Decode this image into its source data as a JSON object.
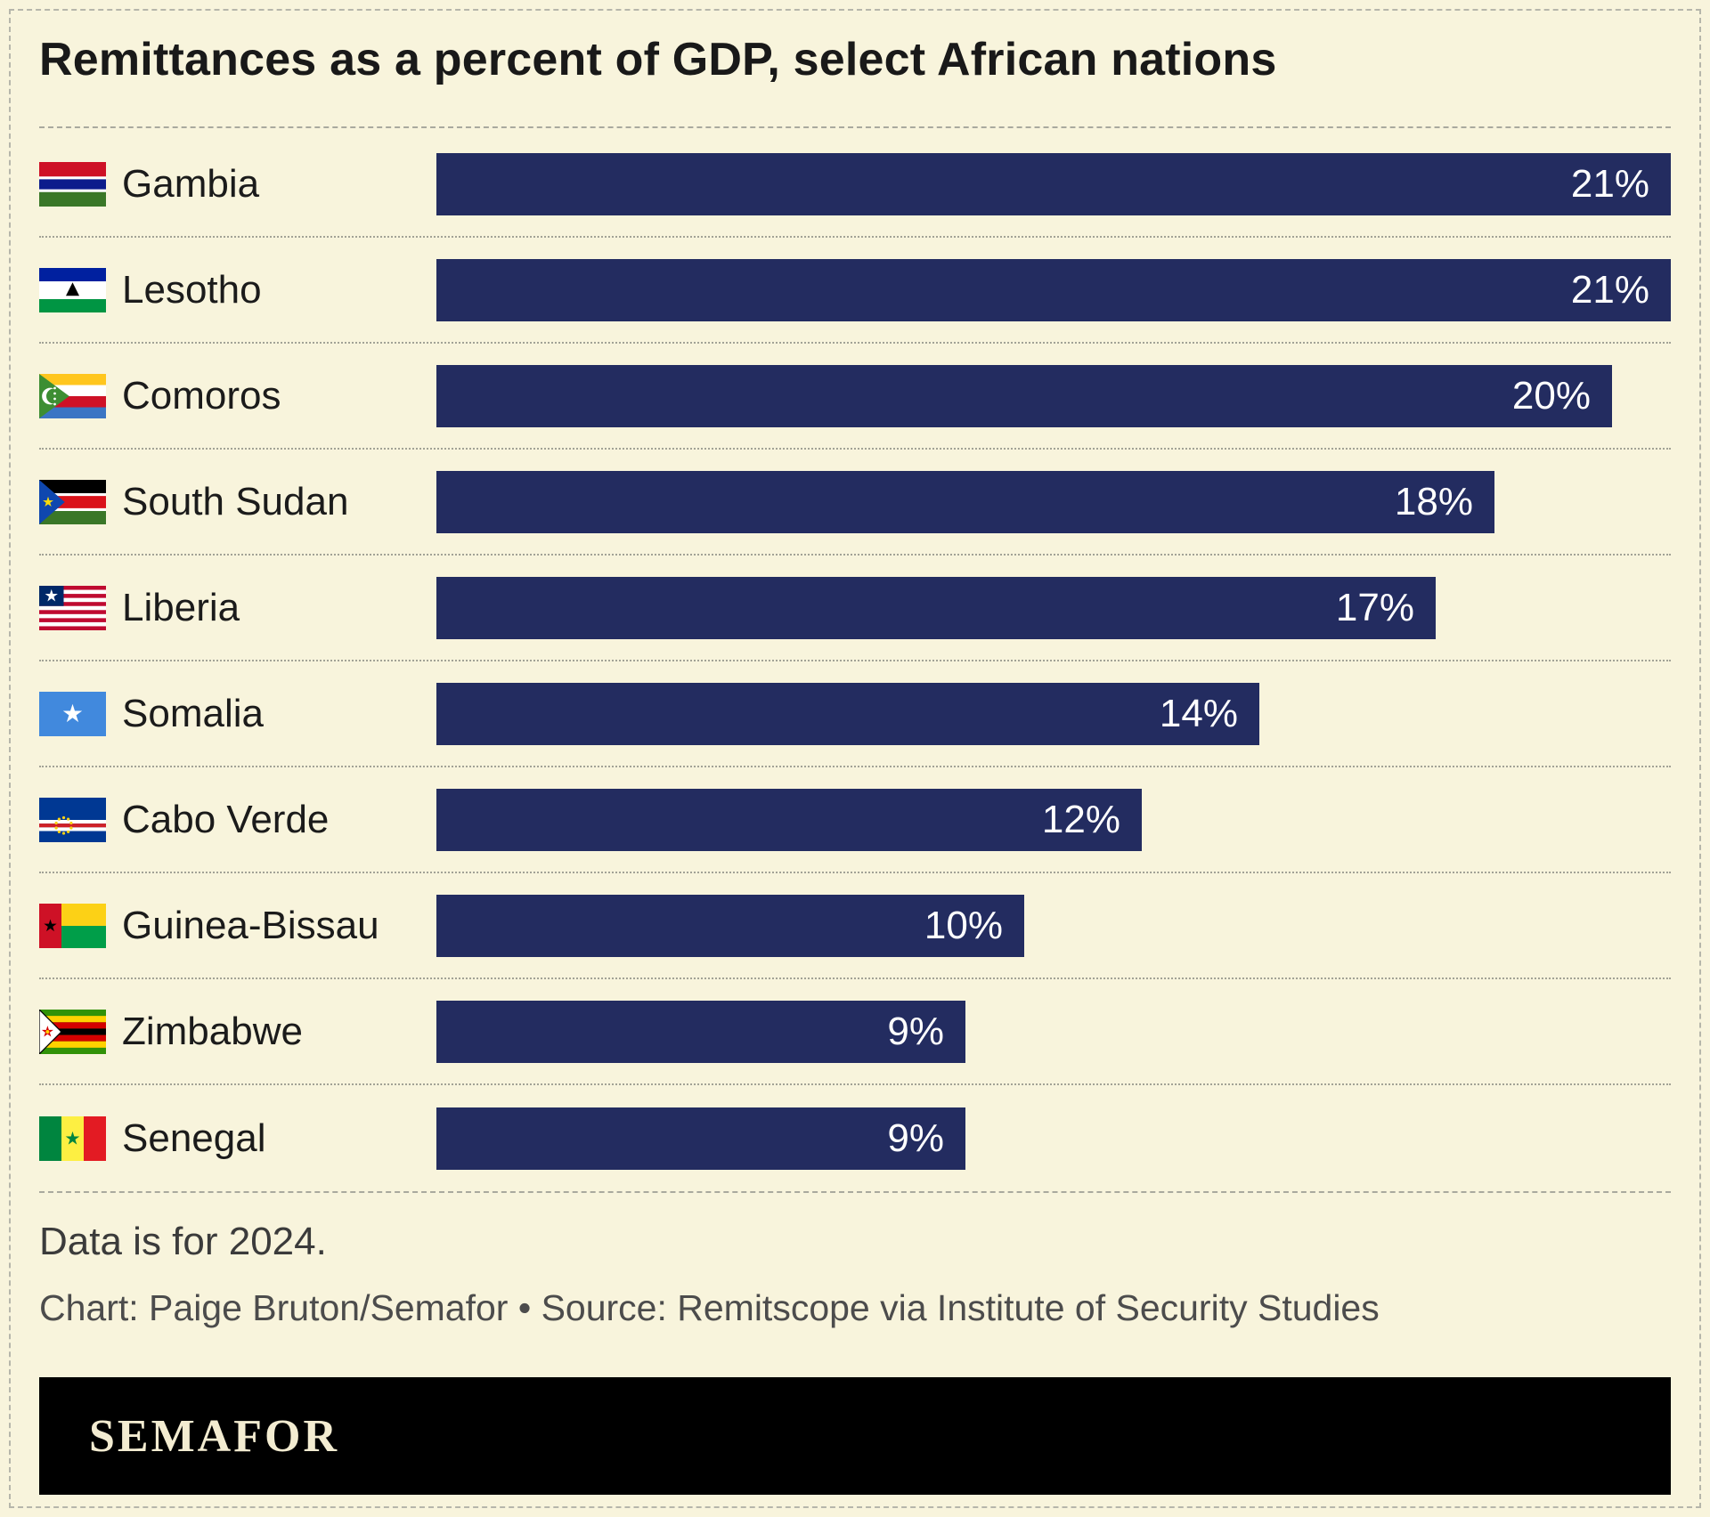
{
  "header": {
    "title": "Remittances as a percent of GDP, select African nations"
  },
  "footer": {
    "data_note": "Data is for 2024.",
    "credit": "Chart: Paige Bruton/Semafor • Source: Remitscope via Institute of Security Studies"
  },
  "brand": {
    "wordmark": "SEMAFOR"
  },
  "colors": {
    "background": "#f8f4dc",
    "bar": "#232c60",
    "logo_background": "#000000",
    "logo_text": "#f3ecd1"
  },
  "chart_data": {
    "type": "bar",
    "orientation": "horizontal",
    "title": "Remittances as a percent of GDP, select African nations",
    "unit": "%",
    "xlim": [
      0,
      21
    ],
    "grid": false,
    "legend": false,
    "value_label_position": "inside-right",
    "bar_color": "#232c60",
    "categories": [
      "Gambia",
      "Lesotho",
      "Comoros",
      "South Sudan",
      "Liberia",
      "Somalia",
      "Cabo Verde",
      "Guinea-Bissau",
      "Zimbabwe",
      "Senegal"
    ],
    "values": [
      21,
      21,
      20,
      18,
      17,
      14,
      12,
      10,
      9,
      9
    ],
    "rows": [
      {
        "country": "Gambia",
        "value": 21,
        "label": "21%",
        "flag_icon": "gambia-flag-icon"
      },
      {
        "country": "Lesotho",
        "value": 21,
        "label": "21%",
        "flag_icon": "lesotho-flag-icon"
      },
      {
        "country": "Comoros",
        "value": 20,
        "label": "20%",
        "flag_icon": "comoros-flag-icon"
      },
      {
        "country": "South Sudan",
        "value": 18,
        "label": "18%",
        "flag_icon": "south-sudan-flag-icon"
      },
      {
        "country": "Liberia",
        "value": 17,
        "label": "17%",
        "flag_icon": "liberia-flag-icon"
      },
      {
        "country": "Somalia",
        "value": 14,
        "label": "14%",
        "flag_icon": "somalia-flag-icon"
      },
      {
        "country": "Cabo Verde",
        "value": 12,
        "label": "12%",
        "flag_icon": "cabo-verde-flag-icon"
      },
      {
        "country": "Guinea-Bissau",
        "value": 10,
        "label": "10%",
        "flag_icon": "guinea-bissau-flag-icon"
      },
      {
        "country": "Zimbabwe",
        "value": 9,
        "label": "9%",
        "flag_icon": "zimbabwe-flag-icon"
      },
      {
        "country": "Senegal",
        "value": 9,
        "label": "9%",
        "flag_icon": "senegal-flag-icon"
      }
    ]
  }
}
